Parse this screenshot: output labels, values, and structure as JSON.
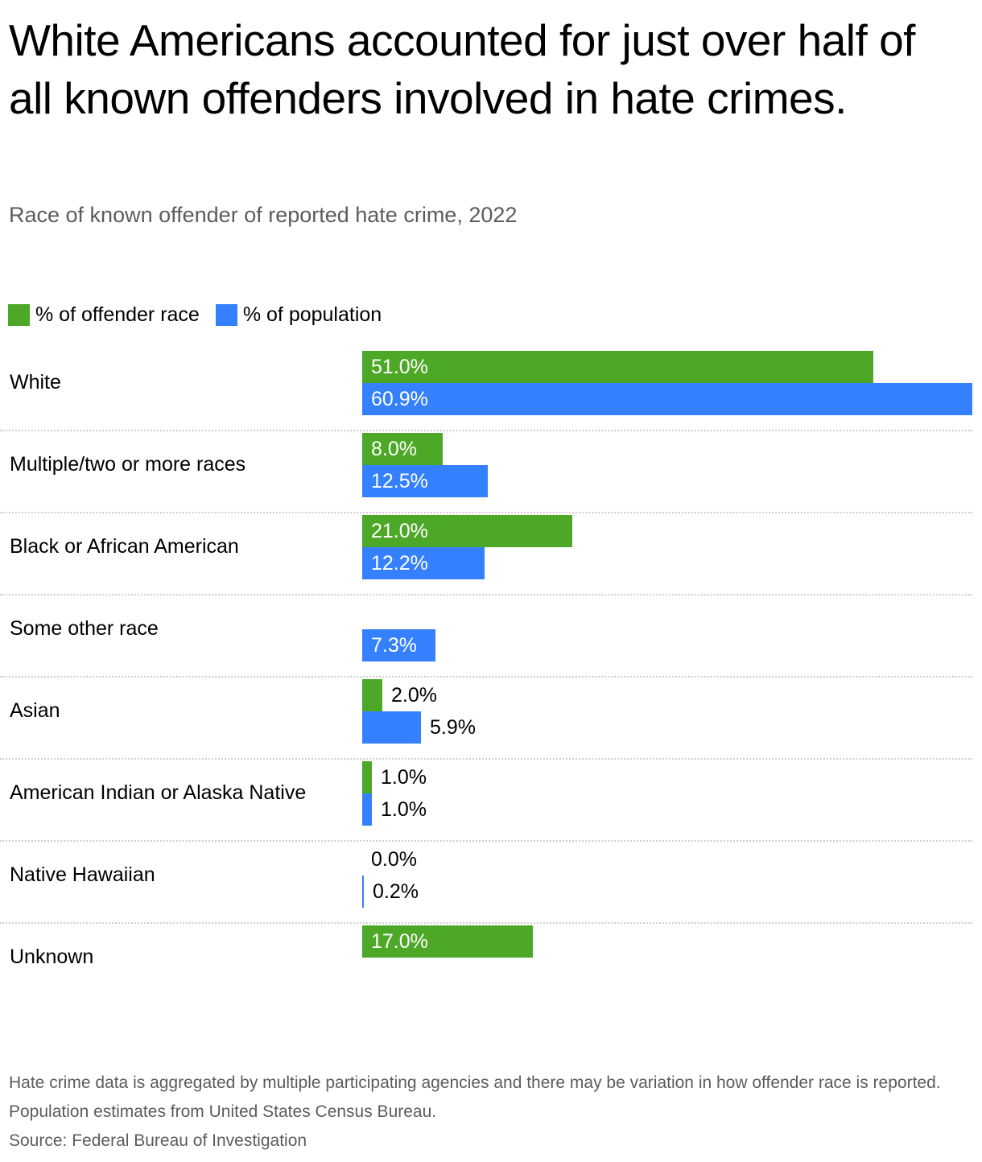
{
  "header": {
    "title": "White Americans accounted for just over half of all known offenders involved in hate crimes.",
    "subtitle": "Race of known offender of reported hate crime, 2022"
  },
  "legend": [
    {
      "label": "% of offender race",
      "color": "#4ea827"
    },
    {
      "label": "% of population",
      "color": "#3580ff"
    }
  ],
  "footer": {
    "note": "Hate crime data is aggregated by multiple participating agencies and there may be variation in how offender race is reported. Population estimates from United States Census Bureau.",
    "source": "Source: Federal Bureau of Investigation"
  },
  "chart_data": {
    "type": "bar",
    "orientation": "horizontal",
    "title": "White Americans accounted for just over half of all known offenders involved in hate crimes.",
    "subtitle": "Race of known offender of reported hate crime, 2022",
    "categories": [
      "White",
      "Multiple/two or more races",
      "Black or African American",
      "Some other race",
      "Asian",
      "American Indian or Alaska Native",
      "Native Hawaiian",
      "Unknown"
    ],
    "series": [
      {
        "name": "% of offender race",
        "color": "#4ea827",
        "values": [
          51.0,
          8.0,
          21.0,
          null,
          2.0,
          1.0,
          0.0,
          17.0
        ],
        "labels": [
          "51.0%",
          "8.0%",
          "21.0%",
          "",
          "2.0%",
          "1.0%",
          "0.0%",
          "17.0%"
        ]
      },
      {
        "name": "% of population",
        "color": "#3580ff",
        "values": [
          60.9,
          12.5,
          12.2,
          7.3,
          5.9,
          1.0,
          0.2,
          null
        ],
        "labels": [
          "60.9%",
          "12.5%",
          "12.2%",
          "7.3%",
          "5.9%",
          "1.0%",
          "0.2%",
          ""
        ]
      }
    ],
    "xlabel": "",
    "ylabel": "",
    "xlim": [
      0,
      60.9
    ],
    "grid": false,
    "legend_position": "top-left",
    "source": "Source: Federal Bureau of Investigation"
  }
}
